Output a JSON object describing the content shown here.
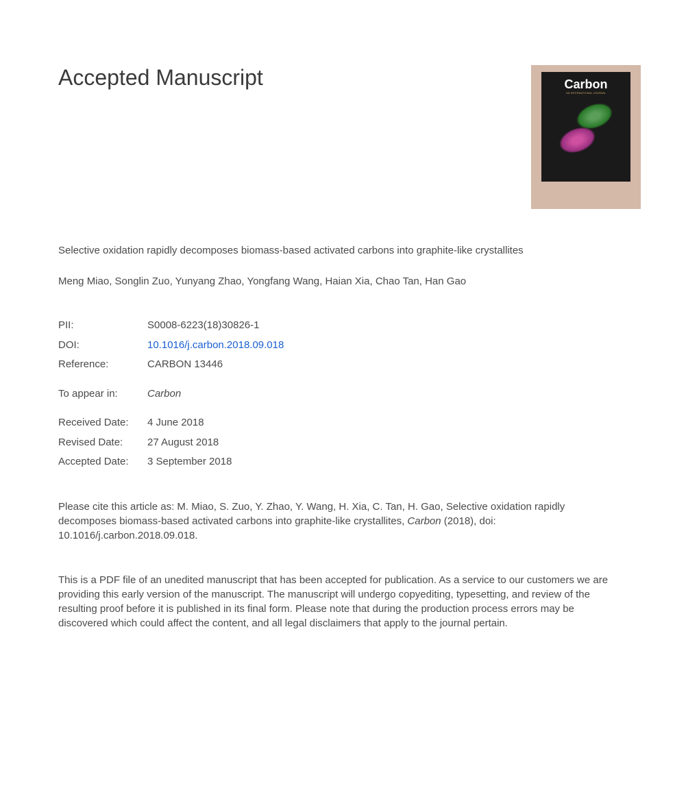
{
  "heading": "Accepted Manuscript",
  "article_title": "Selective oxidation rapidly decomposes biomass-based activated carbons into graphite-like crystallites",
  "authors": "Meng Miao, Songlin Zuo, Yunyang Zhao, Yongfang Wang, Haian Xia, Chao Tan, Han Gao",
  "meta": {
    "pii_label": "PII:",
    "pii_value": "S0008-6223(18)30826-1",
    "doi_label": "DOI:",
    "doi_value": "10.1016/j.carbon.2018.09.018",
    "ref_label": "Reference:",
    "ref_value": "CARBON 13446",
    "appear_label": "To appear in:",
    "appear_value": "Carbon",
    "received_label": "Received Date:",
    "received_value": "4 June 2018",
    "revised_label": "Revised Date:",
    "revised_value": "27 August 2018",
    "accepted_label": "Accepted Date:",
    "accepted_value": "3 September 2018"
  },
  "citation": {
    "prefix": "Please cite this article as: M. Miao, S. Zuo, Y. Zhao, Y. Wang, H. Xia, C. Tan, H. Gao, Selective oxidation rapidly decomposes biomass-based activated carbons into graphite-like crystallites, ",
    "journal": "Carbon",
    "suffix": " (2018), doi: 10.1016/j.carbon.2018.09.018."
  },
  "disclaimer": "This is a PDF file of an unedited manuscript that has been accepted for publication. As a service to our customers we are providing this early version of the manuscript. The manuscript will undergo copyediting, typesetting, and review of the resulting proof before it is published in its final form. Please note that during the production process errors may be discovered which could affect the content, and all legal disclaimers that apply to the journal pertain.",
  "cover": {
    "journal_name": "Carbon",
    "bg_color": "#d4b8a8",
    "inner_bg": "#1a1a1a"
  },
  "colors": {
    "text": "#4a4a4a",
    "link": "#1a5fd0",
    "background": "#ffffff"
  },
  "typography": {
    "heading_fontsize": 32,
    "body_fontsize": 15,
    "font_family": "Arial"
  }
}
